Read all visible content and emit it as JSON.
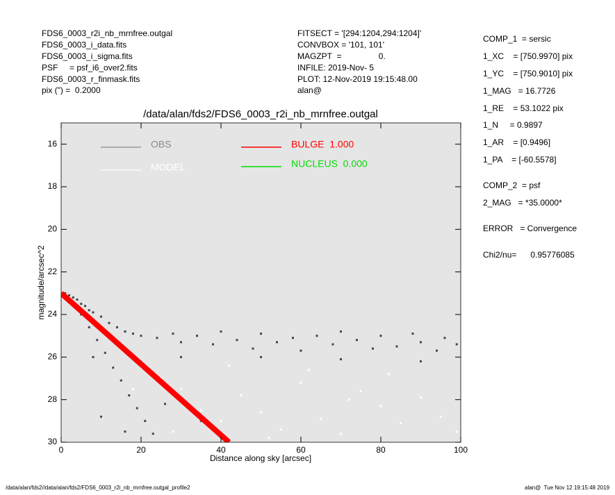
{
  "header": {
    "left": [
      "FDS6_0003_r2i_nb_mrnfree.outgal",
      "FDS6_0003_i_data.fits",
      "FDS6_0003_i_sigma.fits",
      "PSF     = psf_i6_over2.fits",
      "FDS6_0003_r_finmask.fits",
      "pix (\") =  0.2000"
    ],
    "middle": [
      "FITSECT = '[294:1204,294:1204]'",
      "CONVBOX = '101, 101'",
      "MAGZPT  =                0.",
      "INFILE: 2019-Nov- 5",
      "PLOT: 12-Nov-2019 19:15:48.00",
      "alan@"
    ]
  },
  "parameters": [
    "COMP_1  = sersic",
    "1_XC    = [750.9970] pix",
    "1_YC    = [750.9010] pix",
    "1_MAG   = 16.7726",
    "1_RE    = 53.1022 pix",
    "1_N     = 0.9897",
    "1_AR    = [0.9496]",
    "1_PA    = [-60.5578]",
    "COMP_2  = psf",
    "2_MAG   = *35.0000*",
    "ERROR   = Convergence",
    "Chi2/nu=      0.95776085"
  ],
  "footer": {
    "left": "/data/alan/fds2//data/alan/fds2/FDS6_0003_r2i_nb_mrnfree.outgal_profile2",
    "right": "alan@  Tue Nov 12 19:15:48 2019"
  },
  "chart_data": {
    "type": "scatter",
    "title": "/data/alan/fds2/FDS6_0003_r2i_nb_mrnfree.outgal",
    "x_label": "Distance along sky [arcsec]",
    "y_label": "magnitude/arcsec^2",
    "xlim": [
      0,
      100
    ],
    "xticks": [
      0,
      20,
      40,
      60,
      80,
      100
    ],
    "ylim": [
      30,
      15
    ],
    "yticks": [
      16,
      18,
      20,
      22,
      24,
      26,
      28,
      30
    ],
    "background": "#e5e5e5",
    "series": [
      {
        "name": "OBS",
        "color": "#444444",
        "legend_color": "#888888",
        "mark": "point",
        "x": [
          1,
          2,
          3,
          4,
          5,
          6,
          7,
          8,
          10,
          12,
          14,
          16,
          18,
          20,
          24,
          28,
          30,
          34,
          38,
          40,
          44,
          48,
          50,
          54,
          58,
          60,
          64,
          68,
          70,
          74,
          78,
          80,
          84,
          88,
          90,
          94,
          96,
          99,
          3,
          5,
          7,
          9,
          11,
          13,
          15,
          17,
          19,
          21,
          23,
          10,
          16,
          8,
          26,
          35,
          30,
          50,
          70,
          90
        ],
        "values": [
          23.0,
          23.1,
          23.2,
          23.3,
          23.5,
          23.6,
          23.8,
          23.9,
          24.1,
          24.4,
          24.6,
          24.8,
          24.9,
          25.0,
          25.1,
          24.9,
          25.3,
          25.0,
          25.4,
          24.8,
          25.2,
          25.6,
          24.9,
          25.3,
          25.1,
          25.7,
          25.0,
          25.4,
          24.8,
          25.2,
          25.6,
          25.0,
          25.5,
          24.9,
          25.3,
          25.7,
          25.1,
          25.4,
          23.6,
          24.0,
          24.6,
          25.2,
          25.8,
          26.5,
          27.1,
          27.8,
          28.4,
          29.0,
          29.6,
          28.8,
          29.5,
          26.0,
          28.2,
          29.0,
          26.0,
          26.0,
          26.1,
          26.2
        ]
      },
      {
        "name": "MODEL",
        "color": "#ffffff",
        "legend_color": "#ffffff",
        "mark": "point",
        "x": [
          12,
          15,
          20,
          25,
          30,
          35,
          40,
          45,
          50,
          55,
          60,
          65,
          70,
          75,
          80,
          85,
          90,
          95,
          99,
          42,
          62,
          82,
          52,
          72,
          28,
          18
        ],
        "values": [
          25.0,
          25.5,
          26.5,
          27.0,
          27.5,
          28.5,
          29.0,
          27.8,
          28.6,
          29.4,
          27.2,
          28.9,
          29.6,
          27.6,
          28.3,
          29.1,
          27.9,
          28.8,
          29.5,
          26.4,
          26.6,
          26.8,
          29.8,
          28.0,
          29.5,
          27.5
        ]
      },
      {
        "name": "BULGE  1.000",
        "color": "#ff0000",
        "legend_color": "#ff0000",
        "mark": "line",
        "x": [
          0,
          42
        ],
        "values": [
          23.0,
          30.0
        ]
      },
      {
        "name": "NUCLEUS  0.000",
        "color": "#00dd00",
        "legend_color": "#00dd00",
        "mark": "line",
        "x": [],
        "values": []
      }
    ]
  }
}
